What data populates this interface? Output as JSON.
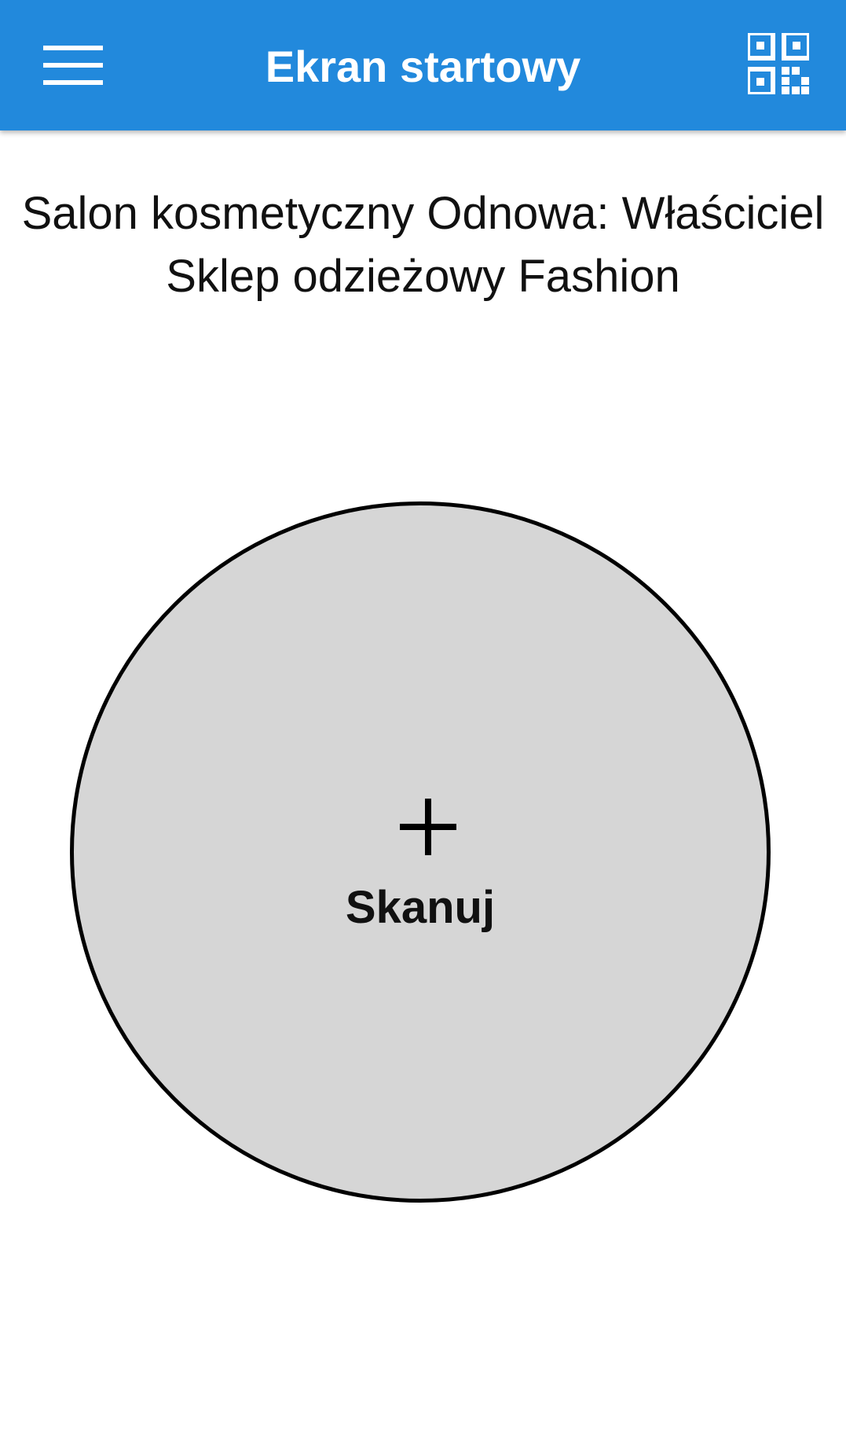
{
  "app_bar": {
    "title": "Ekran startowy",
    "menu_icon": "hamburger-menu-icon",
    "qr_icon": "qr-code-icon",
    "background_color": "#2289dc"
  },
  "main": {
    "subtitle_line1": "Salon kosmetyczny Odnowa: Właściciel",
    "subtitle_line2": "Sklep odzieżowy Fashion",
    "scan_button": {
      "icon": "plus-icon",
      "label": "Skanuj",
      "background_color": "#d6d6d6"
    }
  }
}
